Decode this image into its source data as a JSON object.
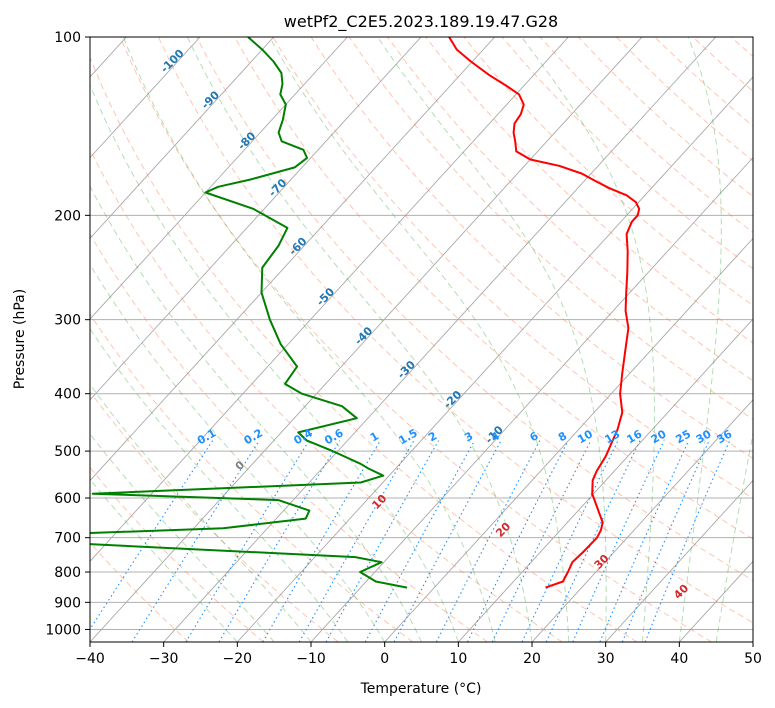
{
  "chart_data": {
    "type": "line",
    "subtype": "skew-T log-P diagram",
    "title": "wetPf2_C2E5.2023.189.19.47.G28",
    "xlabel": "Temperature (°C)",
    "ylabel": "Pressure (hPa)",
    "xlim": [
      -40,
      50
    ],
    "ylim": [
      1050,
      100
    ],
    "y_scale": "log",
    "grid": true,
    "x_ticks": [
      "−40",
      "−30",
      "−20",
      "−10",
      "0",
      "10",
      "20",
      "30",
      "40",
      "50"
    ],
    "x_tick_values": [
      -40,
      -30,
      -20,
      -10,
      0,
      10,
      20,
      30,
      40,
      50
    ],
    "y_ticks": [
      "100",
      "200",
      "300",
      "400",
      "500",
      "600",
      "700",
      "800",
      "900",
      "1000"
    ],
    "y_tick_values": [
      100,
      200,
      300,
      400,
      500,
      600,
      700,
      800,
      900,
      1000
    ],
    "series": [
      {
        "color": "#ff0000",
        "variable": "temperature",
        "points": [
          [
            15.1,
            850
          ],
          [
            16.7,
            830
          ],
          [
            16.2,
            800
          ],
          [
            15.6,
            770
          ],
          [
            15.8,
            740
          ],
          [
            15.9,
            700
          ],
          [
            15.5,
            680
          ],
          [
            14.8,
            660
          ],
          [
            12.0,
            620
          ],
          [
            9.8,
            590
          ],
          [
            8.2,
            560
          ],
          [
            7.6,
            540
          ],
          [
            7.0,
            510
          ],
          [
            6.0,
            480
          ],
          [
            5.3,
            460
          ],
          [
            3.8,
            430
          ],
          [
            1.2,
            400
          ],
          [
            -1.0,
            370
          ],
          [
            -3.3,
            340
          ],
          [
            -5.8,
            310
          ],
          [
            -8.3,
            290
          ],
          [
            -10.5,
            270
          ],
          [
            -12.8,
            250
          ],
          [
            -15.4,
            230
          ],
          [
            -17.7,
            215
          ],
          [
            -18.5,
            205
          ],
          [
            -18.5,
            200
          ],
          [
            -19.1,
            195
          ],
          [
            -20.4,
            190
          ],
          [
            -22.5,
            185
          ],
          [
            -25.7,
            180
          ],
          [
            -28.5,
            175
          ],
          [
            -31.3,
            170
          ],
          [
            -35.3,
            165
          ],
          [
            -40.0,
            161
          ],
          [
            -42.9,
            156
          ],
          [
            -44.3,
            150
          ],
          [
            -45.6,
            145
          ],
          [
            -46.6,
            140
          ],
          [
            -46.9,
            135
          ],
          [
            -47.7,
            130
          ],
          [
            -49.6,
            125
          ],
          [
            -52.3,
            121
          ],
          [
            -56.0,
            116
          ],
          [
            -60.2,
            110
          ],
          [
            -63.6,
            105
          ],
          [
            -66.2,
            100
          ]
        ]
      },
      {
        "color": "#008000",
        "variable": "dewpoint",
        "points": [
          [
            -3.7,
            850
          ],
          [
            -8.7,
            830
          ],
          [
            -12.0,
            800
          ],
          [
            -10.3,
            770
          ],
          [
            -14.5,
            755
          ],
          [
            -71.0,
            700
          ],
          [
            -36.0,
            675
          ],
          [
            -26.0,
            650
          ],
          [
            -26.5,
            630
          ],
          [
            -32.0,
            605
          ],
          [
            -58.0,
            590
          ],
          [
            -23.0,
            565
          ],
          [
            -20.8,
            550
          ],
          [
            -23.7,
            535
          ],
          [
            -25.4,
            525
          ],
          [
            -30.7,
            500
          ],
          [
            -35.5,
            480
          ],
          [
            -37.7,
            465
          ],
          [
            -31.5,
            440
          ],
          [
            -35.0,
            420
          ],
          [
            -42.0,
            400
          ],
          [
            -45.5,
            385
          ],
          [
            -46.0,
            360
          ],
          [
            -51.0,
            330
          ],
          [
            -55.5,
            300
          ],
          [
            -60.0,
            270
          ],
          [
            -63.0,
            245
          ],
          [
            -63.5,
            225
          ],
          [
            -64.5,
            210
          ],
          [
            -71.5,
            195
          ],
          [
            -80.0,
            183
          ],
          [
            -79.0,
            179
          ],
          [
            -75.5,
            174
          ],
          [
            -71.0,
            166
          ],
          [
            -70.5,
            160
          ],
          [
            -72.0,
            155
          ],
          [
            -76.0,
            150
          ],
          [
            -77.5,
            145
          ],
          [
            -78.5,
            138
          ],
          [
            -80.0,
            130
          ],
          [
            -82.0,
            125
          ],
          [
            -83.0,
            120
          ],
          [
            -84.5,
            115
          ],
          [
            -87.0,
            110
          ],
          [
            -90.0,
            105
          ],
          [
            -93.5,
            100
          ]
        ]
      }
    ],
    "dry_adiabat_labels": [
      "-100",
      "-90",
      "-80",
      "-70",
      "-60",
      "-50",
      "-40",
      "-30",
      "-20",
      "-10"
    ],
    "dry_adiabat_label_values": [
      -100,
      -90,
      -80,
      -70,
      -60,
      -50,
      -40,
      -30,
      -20,
      -10
    ],
    "mixing_ratio_labels": [
      "0.1",
      "0.2",
      "0.4",
      "0.6",
      "1",
      "1.5",
      "2",
      "3",
      "4",
      "6",
      "8",
      "10",
      "13",
      "16",
      "20",
      "25",
      "30",
      "36"
    ],
    "mixing_ratio_values": [
      0.1,
      0.2,
      0.4,
      0.6,
      1,
      1.5,
      2,
      3,
      4,
      6,
      8,
      10,
      13,
      16,
      20,
      25,
      30,
      36
    ],
    "moist_adiabat_labels": [
      "0",
      "10",
      "20",
      "30",
      "40"
    ],
    "moist_adiabat_values": [
      0,
      10,
      20,
      30,
      40
    ],
    "colors": {
      "temperature": "#ff0000",
      "dewpoint": "#008000",
      "isotherm": "#a9a9a9",
      "dry_adiabat": "#ff7f50",
      "moist_adiabat": "#2ca02c",
      "mixing_ratio": "#1e90ff",
      "adiabat_label": "#1f77b4",
      "moist_label": "#d62728"
    }
  }
}
